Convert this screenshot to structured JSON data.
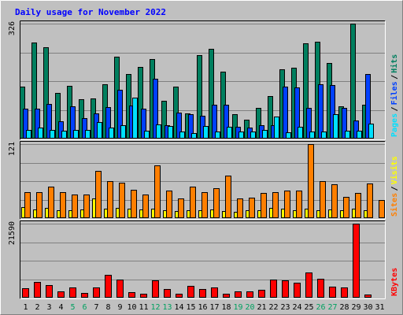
{
  "title": "Daily usage for November 2022",
  "colors": {
    "background": "#c0c0c0",
    "title": "#0000ff",
    "hits": "#007f5f",
    "files": "#0040ff",
    "pages": "#00e0ff",
    "visits": "#ffff00",
    "sites": "#ff7f00",
    "kbytes": "#ff0000",
    "weekend_label": "#00a060"
  },
  "chart_data": [
    {
      "type": "bar",
      "title": "Daily usage for November 2022",
      "categories": [
        "1",
        "2",
        "3",
        "4",
        "5",
        "6",
        "7",
        "8",
        "9",
        "10",
        "11",
        "12",
        "13",
        "14",
        "15",
        "16",
        "17",
        "18",
        "19",
        "20",
        "21",
        "22",
        "23",
        "24",
        "25",
        "26",
        "27",
        "28",
        "29",
        "30",
        "31"
      ],
      "weekend_categories": [
        "5",
        "6",
        "12",
        "13",
        "19",
        "20",
        "26",
        "27"
      ],
      "ymax_label": "326",
      "ylim": [
        0,
        326
      ],
      "series": [
        {
          "name": "Hits",
          "values": [
            148,
            272,
            258,
            130,
            150,
            112,
            114,
            155,
            233,
            183,
            203,
            226,
            108,
            148,
            71,
            236,
            255,
            189,
            70,
            54,
            88,
            121,
            196,
            200,
            270,
            274,
            214,
            92,
            326,
            96,
            0
          ]
        },
        {
          "name": "Files",
          "values": [
            84,
            84,
            98,
            50,
            92,
            58,
            72,
            90,
            138,
            93,
            84,
            169,
            38,
            73,
            69,
            64,
            97,
            97,
            33,
            31,
            37,
            39,
            147,
            145,
            88,
            155,
            152,
            88,
            51,
            182,
            0
          ]
        },
        {
          "name": "Pages",
          "values": [
            25,
            31,
            25,
            23,
            25,
            24,
            48,
            32,
            38,
            117,
            22,
            40,
            35,
            21,
            15,
            36,
            19,
            34,
            20,
            21,
            24,
            62,
            17,
            34,
            20,
            21,
            70,
            22,
            23,
            42,
            0
          ]
        }
      ],
      "legend": [
        "Pages",
        "Files",
        "Hits"
      ]
    },
    {
      "type": "bar",
      "categories": [
        "1",
        "2",
        "3",
        "4",
        "5",
        "6",
        "7",
        "8",
        "9",
        "10",
        "11",
        "12",
        "13",
        "14",
        "15",
        "16",
        "17",
        "18",
        "19",
        "20",
        "21",
        "22",
        "23",
        "24",
        "25",
        "26",
        "27",
        "28",
        "29",
        "30",
        "31"
      ],
      "ymax_label": "121",
      "ylim": [
        0,
        121
      ],
      "series": [
        {
          "name": "Visits",
          "values": [
            18,
            14,
            17,
            13,
            13,
            14,
            32,
            16,
            17,
            15,
            14,
            16,
            13,
            12,
            13,
            13,
            14,
            12,
            10,
            13,
            13,
            17,
            15,
            13,
            16,
            13,
            14,
            13,
            15,
            13,
            0
          ]
        },
        {
          "name": "Sites",
          "values": [
            43,
            43,
            51,
            43,
            39,
            39,
            77,
            60,
            58,
            46,
            39,
            86,
            45,
            32,
            52,
            43,
            49,
            69,
            32,
            34,
            41,
            43,
            45,
            45,
            121,
            61,
            55,
            35,
            41,
            57,
            30
          ]
        }
      ],
      "legend": [
        "Sites",
        "Visits"
      ]
    },
    {
      "type": "bar",
      "categories": [
        "1",
        "2",
        "3",
        "4",
        "5",
        "6",
        "7",
        "8",
        "9",
        "10",
        "11",
        "12",
        "13",
        "14",
        "15",
        "16",
        "17",
        "18",
        "19",
        "20",
        "21",
        "22",
        "23",
        "24",
        "25",
        "26",
        "27",
        "28",
        "29",
        "30",
        "31"
      ],
      "ymax_label": "21590",
      "ylim": [
        0,
        21590
      ],
      "series": [
        {
          "name": "KBytes",
          "values": [
            2790,
            4520,
            3580,
            1810,
            2930,
            1370,
            3070,
            6600,
            5280,
            1530,
            1180,
            4960,
            2640,
            1080,
            3420,
            2500,
            2970,
            1240,
            1860,
            1880,
            2330,
            5350,
            5090,
            4440,
            7390,
            5460,
            3210,
            3080,
            21590,
            980,
            0
          ]
        }
      ],
      "legend": [
        "KBytes"
      ]
    }
  ]
}
